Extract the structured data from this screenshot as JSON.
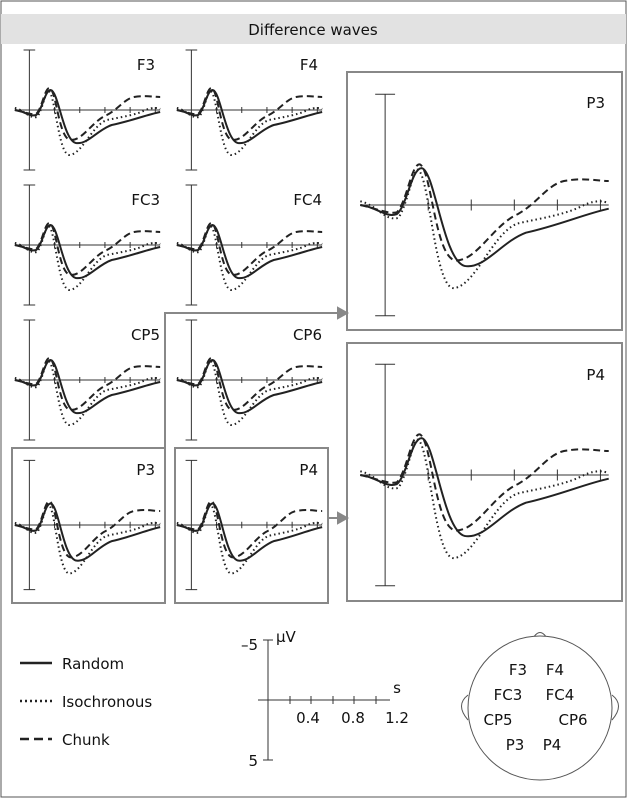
{
  "title": "Difference waves",
  "panels": [
    {
      "label": "F3"
    },
    {
      "label": "F4"
    },
    {
      "label": "FC3"
    },
    {
      "label": "FC4"
    },
    {
      "label": "CP5"
    },
    {
      "label": "CP6"
    },
    {
      "label": "P3"
    },
    {
      "label": "P4"
    }
  ],
  "enlarged": [
    {
      "label": "P3"
    },
    {
      "label": "P4"
    }
  ],
  "legend": [
    {
      "label": "Random"
    },
    {
      "label": "Isochronous"
    },
    {
      "label": "Chunk"
    }
  ],
  "scale": {
    "y_top": "–5",
    "y_unit": "μV",
    "y_bottom": "5",
    "x_unit": "s",
    "x_ticks": [
      "0.4",
      "0.8",
      "1.2"
    ]
  },
  "head": {
    "labels": [
      "F3",
      "F4",
      "FC3",
      "FC4",
      "CP5",
      "CP6",
      "P3",
      "P4"
    ]
  }
}
